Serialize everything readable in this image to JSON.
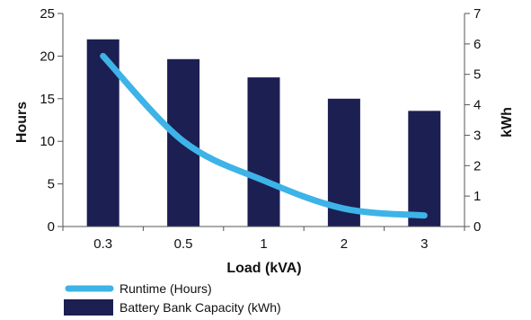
{
  "chart_data": {
    "type": "bar",
    "categories": [
      "0.3",
      "0.5",
      "1",
      "2",
      "3"
    ],
    "xlabel": "Load (kVA)",
    "ylabel": "Hours",
    "y2label": "kWh",
    "ylim": [
      0,
      25
    ],
    "y2lim": [
      0,
      7
    ],
    "yticks": [
      "0",
      "5",
      "10",
      "15",
      "20",
      "25"
    ],
    "y2ticks": [
      "0",
      "1",
      "2",
      "3",
      "4",
      "5",
      "6",
      "7"
    ],
    "series": [
      {
        "name": "Battery Bank Capacity (kWh)",
        "kind": "bar",
        "axis": "right",
        "color": "#1c1f52",
        "values": [
          6.15,
          5.5,
          4.9,
          4.2,
          3.8
        ]
      },
      {
        "name": "Runtime (Hours)",
        "kind": "line",
        "axis": "left",
        "color": "#3db3e8",
        "values": [
          20.0,
          10.0,
          5.4,
          2.1,
          1.3
        ]
      }
    ],
    "grid": false,
    "legend_position": "bottom-left"
  }
}
